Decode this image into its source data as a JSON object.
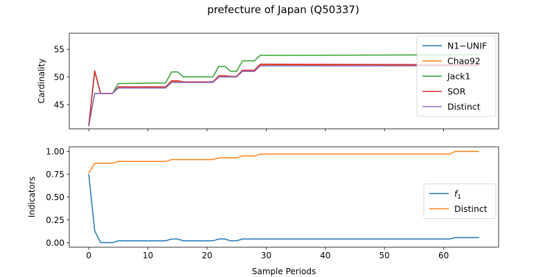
{
  "figure_title": "prefecture of Japan (Q50337)",
  "chart_data": [
    {
      "type": "line",
      "title": "",
      "xlabel": "",
      "ylabel": "Cardinality",
      "xlim": [
        -3.3,
        69.3
      ],
      "ylim": [
        40.6,
        57.9
      ],
      "xticks": [
        0,
        10,
        20,
        30,
        40,
        50,
        60
      ],
      "yticks": [
        45,
        50,
        55
      ],
      "xtick_labels_visible": false,
      "legend_position": "upper-right",
      "x": [
        0,
        1,
        2,
        3,
        4,
        5,
        13,
        14,
        15,
        16,
        21,
        22,
        23,
        24,
        25,
        26,
        28,
        29,
        66
      ],
      "series": [
        {
          "name": "N1−UNIF",
          "color": "#1f77b4",
          "values": [
            41.2,
            47,
            47,
            47,
            47,
            48,
            48,
            49,
            49,
            49,
            49,
            50,
            50,
            50,
            50,
            51,
            51,
            52,
            52
          ]
        },
        {
          "name": "Chao92",
          "color": "#ff7f0e",
          "values": [
            41.2,
            51,
            47,
            47,
            47,
            48.1,
            48.1,
            49.2,
            49.2,
            49.1,
            49.1,
            50.2,
            50.1,
            50.1,
            50.1,
            51.1,
            51.1,
            52.2,
            52.1
          ]
        },
        {
          "name": "Jack1",
          "color": "#2ca02c",
          "values": [
            41.2,
            51,
            47,
            47,
            47,
            48.8,
            48.9,
            50.9,
            50.9,
            50,
            50,
            51.9,
            51.9,
            51,
            51,
            52.9,
            52.9,
            53.9,
            54
          ]
        },
        {
          "name": "SOR",
          "color": "#d62728",
          "values": [
            41.2,
            51.1,
            47,
            47,
            47,
            48.2,
            48.2,
            49.3,
            49.3,
            49.1,
            49.1,
            50.2,
            50.2,
            50.1,
            50.1,
            51.2,
            51.2,
            52.3,
            52.2
          ]
        },
        {
          "name": "Distinct",
          "color": "#9467bd",
          "values": [
            41,
            47,
            47,
            47,
            47,
            48,
            48,
            49,
            49,
            49,
            49,
            50,
            50,
            50,
            50,
            51,
            51,
            52,
            52
          ]
        }
      ]
    },
    {
      "type": "line",
      "title": "",
      "xlabel": "Sample Periods",
      "ylabel": "Indicators",
      "xlim": [
        -3.3,
        69.3
      ],
      "ylim": [
        -0.05,
        1.05
      ],
      "xticks": [
        0,
        10,
        20,
        30,
        40,
        50,
        60
      ],
      "yticks": [
        0.0,
        0.25,
        0.5,
        0.75,
        1.0
      ],
      "xtick_labels": [
        "0",
        "10",
        "20",
        "30",
        "40",
        "50",
        "60"
      ],
      "ytick_labels": [
        "0.00",
        "0.25",
        "0.50",
        "0.75",
        "1.00"
      ],
      "legend_position": "center-right",
      "series": [
        {
          "name": "f",
          "name_subscript": "1",
          "color": "#1f77b4",
          "x": [
            0,
            1,
            2,
            3,
            4,
            5,
            13,
            14,
            15,
            16,
            21,
            22,
            23,
            24,
            25,
            26,
            61,
            62,
            66
          ],
          "values": [
            0.75,
            0.13,
            0.0,
            0.0,
            0.0,
            0.02,
            0.02,
            0.04,
            0.04,
            0.02,
            0.02,
            0.04,
            0.04,
            0.02,
            0.02,
            0.04,
            0.04,
            0.055,
            0.055
          ]
        },
        {
          "name": "Distinct",
          "color": "#ff7f0e",
          "x": [
            0,
            1,
            2,
            3,
            4,
            5,
            13,
            14,
            15,
            16,
            21,
            22,
            23,
            24,
            25,
            26,
            28,
            29,
            61,
            62,
            66
          ],
          "values": [
            0.76,
            0.87,
            0.87,
            0.87,
            0.87,
            0.89,
            0.89,
            0.91,
            0.91,
            0.91,
            0.91,
            0.93,
            0.93,
            0.93,
            0.93,
            0.95,
            0.95,
            0.97,
            0.97,
            1.0,
            1.0
          ]
        }
      ]
    }
  ]
}
